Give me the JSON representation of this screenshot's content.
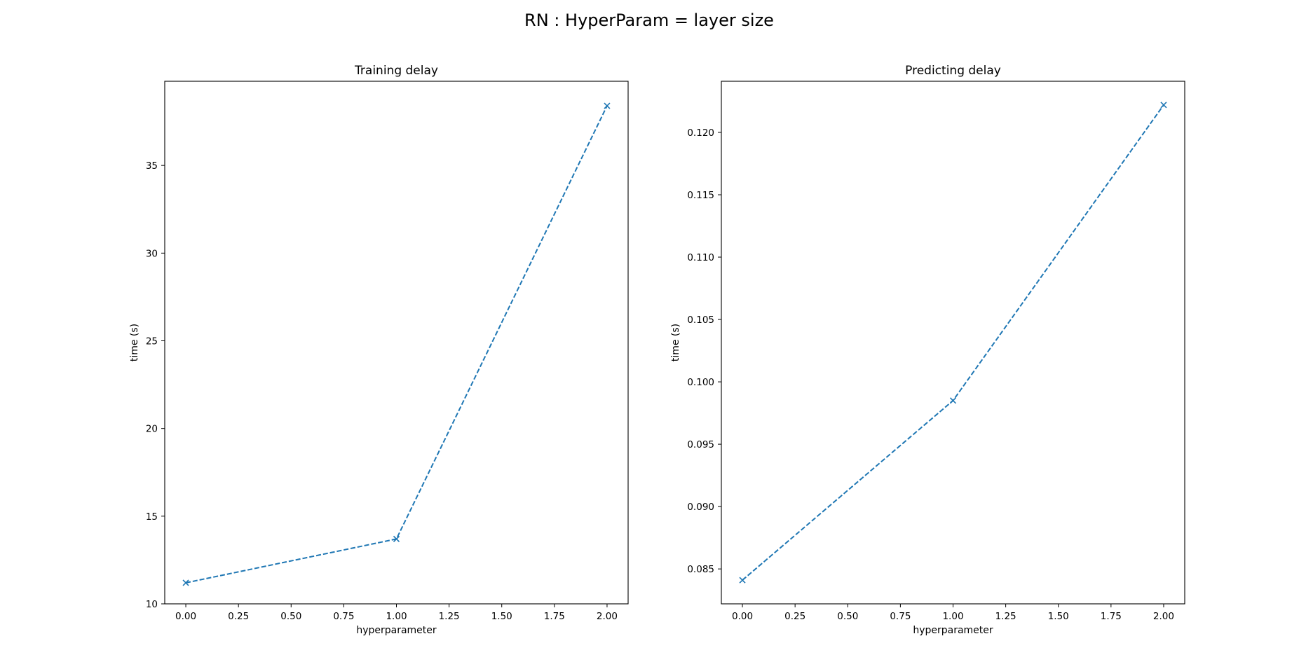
{
  "figure": {
    "suptitle": "RN : HyperParam = layer size"
  },
  "colors": {
    "series": "#1f77b4"
  },
  "chart_data": [
    {
      "type": "line",
      "title": "Training delay",
      "xlabel": "hyperparameter",
      "ylabel": "time (s)",
      "marker": "x",
      "linestyle": "dashed",
      "x": [
        0.0,
        1.0,
        2.0
      ],
      "y": [
        11.2,
        13.7,
        38.4
      ],
      "xlim": [
        -0.1,
        2.1
      ],
      "ylim": [
        10.0,
        39.8
      ],
      "xticks": [
        0.0,
        0.25,
        0.5,
        0.75,
        1.0,
        1.25,
        1.5,
        1.75,
        2.0
      ],
      "xtick_labels": [
        "0.00",
        "0.25",
        "0.50",
        "0.75",
        "1.00",
        "1.25",
        "1.50",
        "1.75",
        "2.00"
      ],
      "yticks": [
        10,
        15,
        20,
        25,
        30,
        35
      ],
      "ytick_labels": [
        "10",
        "15",
        "20",
        "25",
        "30",
        "35"
      ],
      "grid": false,
      "legend": "none"
    },
    {
      "type": "line",
      "title": "Predicting delay",
      "xlabel": "hyperparameter",
      "ylabel": "time (s)",
      "marker": "x",
      "linestyle": "dashed",
      "x": [
        0.0,
        1.0,
        2.0
      ],
      "y": [
        0.0841,
        0.0985,
        0.1222
      ],
      "xlim": [
        -0.1,
        2.1
      ],
      "ylim": [
        0.0822,
        0.1241
      ],
      "xticks": [
        0.0,
        0.25,
        0.5,
        0.75,
        1.0,
        1.25,
        1.5,
        1.75,
        2.0
      ],
      "xtick_labels": [
        "0.00",
        "0.25",
        "0.50",
        "0.75",
        "1.00",
        "1.25",
        "1.50",
        "1.75",
        "2.00"
      ],
      "yticks": [
        0.085,
        0.09,
        0.095,
        0.1,
        0.105,
        0.11,
        0.115,
        0.12
      ],
      "ytick_labels": [
        "0.085",
        "0.090",
        "0.095",
        "0.100",
        "0.105",
        "0.110",
        "0.115",
        "0.120"
      ],
      "grid": false,
      "legend": "none"
    }
  ]
}
